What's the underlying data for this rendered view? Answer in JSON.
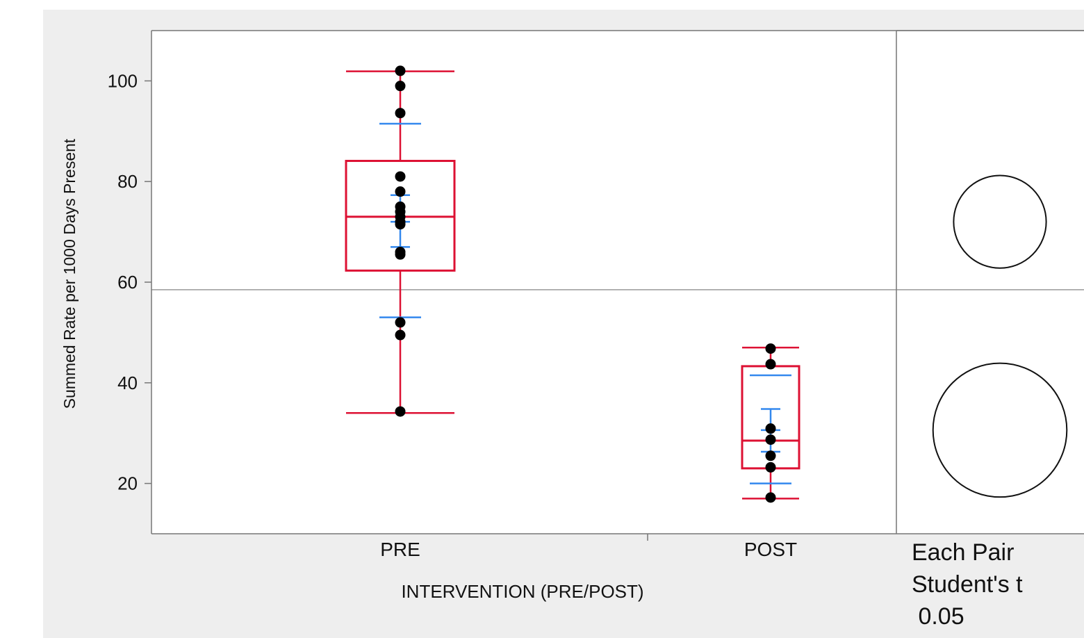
{
  "chart_data": {
    "type": "box",
    "ylabel": "Summed Rate per 1000 Days Present",
    "xlabel": "INTERVENTION (PRE/POST)",
    "ylim": [
      10,
      110
    ],
    "yticks": [
      20,
      40,
      60,
      80,
      100
    ],
    "grand_mean": 58.5,
    "categories": [
      "PRE",
      "POST"
    ],
    "groups": [
      {
        "name": "PRE",
        "box": {
          "whisker_low": 34,
          "q1": 62.3,
          "median": 73,
          "q3": 84.1,
          "whisker_high": 101.9
        },
        "mean_ci": {
          "lower": 67,
          "mean": 72,
          "upper": 77.3
        },
        "std_dev_lines": {
          "lower": 53,
          "upper": 91.5
        },
        "points": [
          102,
          99,
          93.6,
          81,
          78,
          75,
          74,
          73,
          72,
          71.5,
          66,
          65.5,
          52,
          49.5,
          34.3
        ]
      },
      {
        "name": "POST",
        "box": {
          "whisker_low": 17,
          "q1": 23,
          "median": 28.5,
          "q3": 43.3,
          "whisker_high": 47
        },
        "mean_ci": {
          "lower": 26.3,
          "mean": 30.6,
          "upper": 34.8
        },
        "std_dev_lines": {
          "lower": 20,
          "upper": 41.5
        },
        "points": [
          46.8,
          43.7,
          30.9,
          28.7,
          25.5,
          23.2,
          17.2
        ]
      }
    ],
    "comparison": {
      "label_lines": [
        "Each Pair",
        "Student's t",
        " 0.05"
      ],
      "circles": [
        {
          "group": "PRE",
          "center": 72,
          "radius": 9.2
        },
        {
          "group": "POST",
          "center": 30.6,
          "radius": 13.3
        }
      ]
    },
    "colors": {
      "box": "#dd1133",
      "mean_ci": "#3388ee",
      "points": "#000000",
      "axis": "#777777",
      "grand_mean_line": "#999999"
    }
  }
}
